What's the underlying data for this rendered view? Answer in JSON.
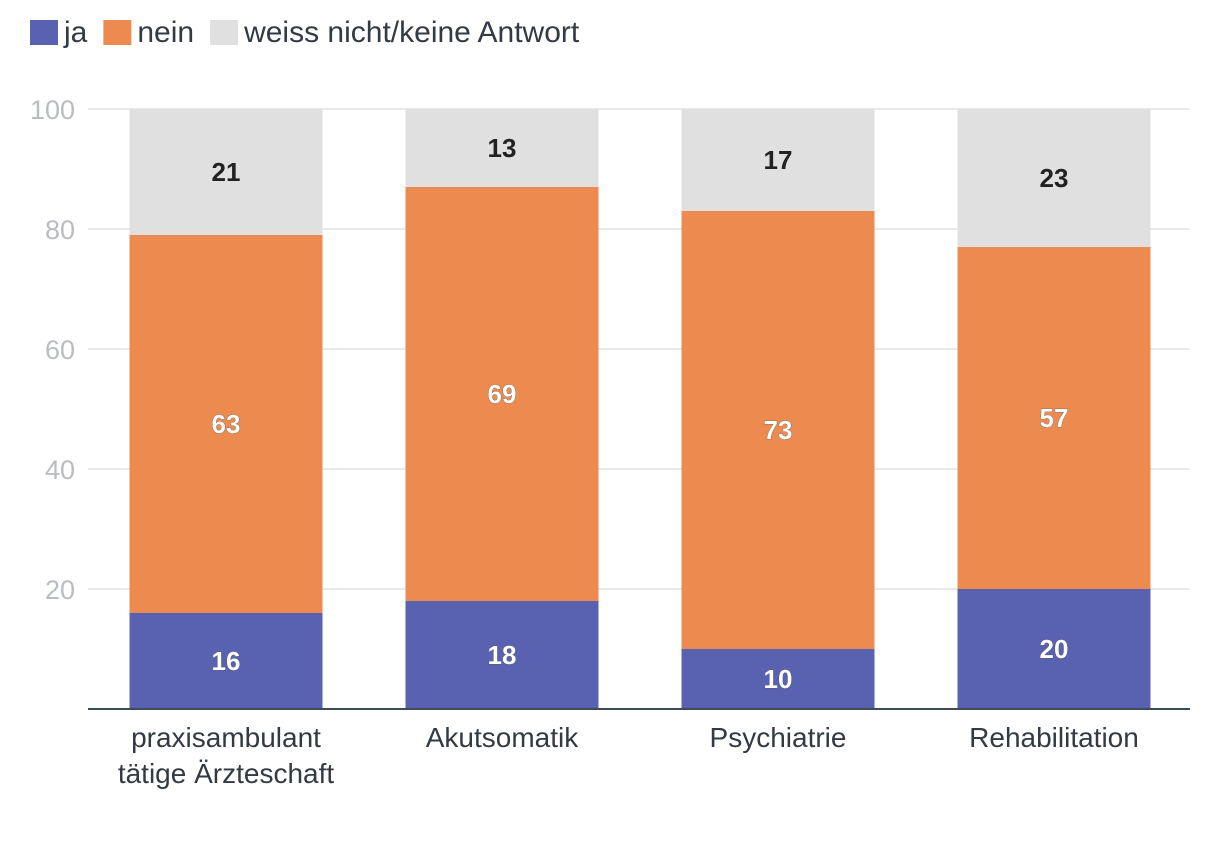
{
  "chart_data": {
    "type": "bar",
    "stacked": true,
    "categories": [
      [
        "praxisambulant",
        "tätige Ärzteschaft"
      ],
      [
        "Akutsomatik"
      ],
      [
        "Psychiatrie"
      ],
      [
        "Rehabilitation"
      ]
    ],
    "series": [
      {
        "name": "ja",
        "color": "#5862b1",
        "values": [
          16,
          18,
          10,
          20
        ],
        "label_style": "light"
      },
      {
        "name": "nein",
        "color": "#ec8a4f",
        "values": [
          63,
          69,
          73,
          57
        ],
        "label_style": "light"
      },
      {
        "name": "weiss nicht/keine Antwort",
        "color": "#e0e0e0",
        "values": [
          21,
          13,
          17,
          23
        ],
        "label_style": "dark"
      }
    ],
    "ylim": [
      0,
      100
    ],
    "yticks": [
      20,
      40,
      60,
      80,
      100
    ],
    "grid": true,
    "legend_position": "top-left"
  }
}
